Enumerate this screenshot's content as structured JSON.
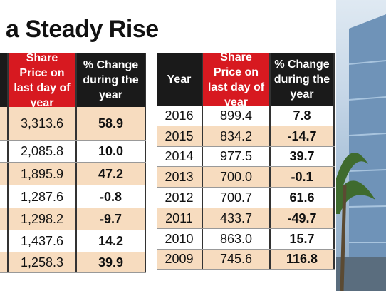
{
  "title": "a Steady Rise",
  "left_table": {
    "header": [
      "Share Price on last day of year",
      "% Change during the year"
    ],
    "rows": [
      [
        "3,313.6",
        "58.9"
      ],
      [
        "2,085.8",
        "10.0"
      ],
      [
        "1,895.9",
        "47.2"
      ],
      [
        "1,287.6",
        "-0.8"
      ],
      [
        "1,298.2",
        "-9.7"
      ],
      [
        "1,437.6",
        "14.2"
      ],
      [
        "1,258.3",
        "39.9"
      ]
    ]
  },
  "right_table": {
    "header": [
      "Year",
      "Share Price on last day of year",
      "% Change during the year"
    ],
    "rows": [
      [
        "2016",
        "899.4",
        "7.8"
      ],
      [
        "2015",
        "834.2",
        "-14.7"
      ],
      [
        "2014",
        "977.5",
        "39.7"
      ],
      [
        "2013",
        "700.0",
        "-0.1"
      ],
      [
        "2012",
        "700.7",
        "61.6"
      ],
      [
        "2011",
        "433.7",
        "-49.7"
      ],
      [
        "2010",
        "863.0",
        "15.7"
      ],
      [
        "2009",
        "745.6",
        "116.8"
      ]
    ]
  }
}
